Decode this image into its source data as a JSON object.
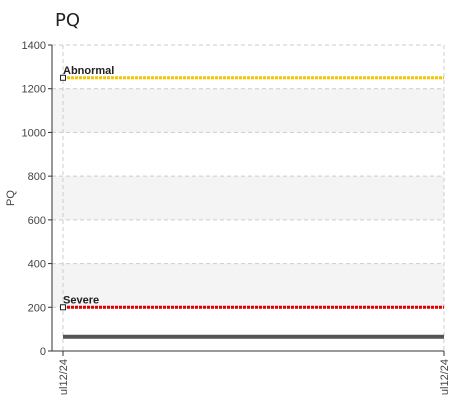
{
  "chart_data": {
    "type": "line",
    "title": "PQ",
    "ylabel": "PQ",
    "ylim": [
      0,
      1400
    ],
    "yticks": [
      0,
      200,
      400,
      600,
      800,
      1000,
      1200,
      1400
    ],
    "xticks": [
      "ul12/24",
      "ul12/24"
    ],
    "grid": true,
    "reference_lines": [
      {
        "name": "Abnormal",
        "value": 1250,
        "color": "#f5c400"
      },
      {
        "name": "Severe",
        "value": 200,
        "color": "#e00000"
      }
    ],
    "series": [
      {
        "values": [
          65,
          65
        ],
        "color": "#555555"
      }
    ],
    "bands": [
      [
        200,
        400
      ],
      [
        600,
        800
      ],
      [
        1000,
        1200
      ]
    ]
  }
}
